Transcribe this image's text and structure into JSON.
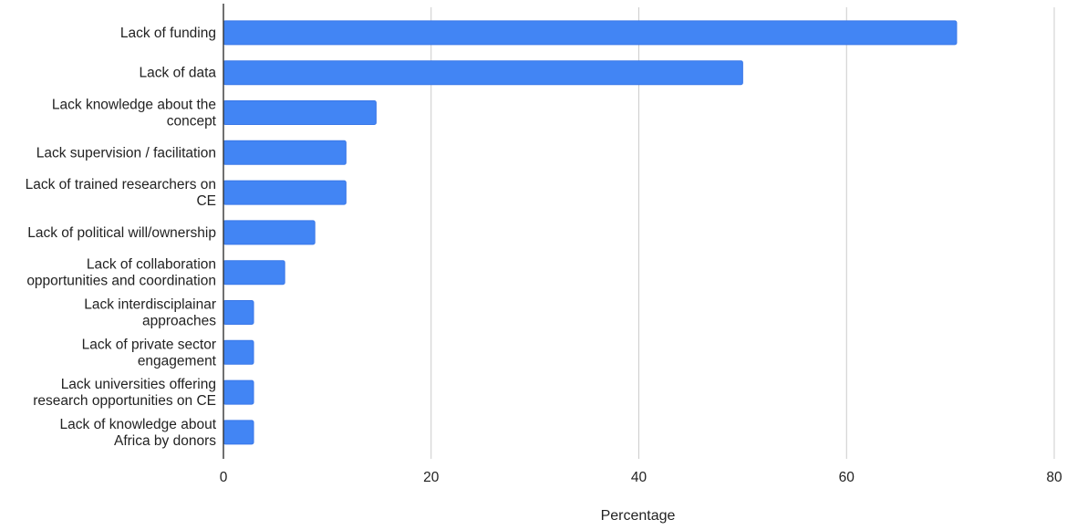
{
  "chart_data": {
    "type": "bar",
    "orientation": "horizontal",
    "categories": [
      [
        "Lack of funding"
      ],
      [
        "Lack of data"
      ],
      [
        "Lack knowledge about the",
        "concept"
      ],
      [
        "Lack supervision / facilitation"
      ],
      [
        "Lack of trained researchers on",
        "CE"
      ],
      [
        "Lack of political will/ownership"
      ],
      [
        "Lack of collaboration",
        "opportunities and coordination"
      ],
      [
        "Lack interdisciplainar",
        "approaches"
      ],
      [
        "Lack of private sector",
        "engagement"
      ],
      [
        "Lack universities offering",
        "research opportunities on CE"
      ],
      [
        "Lack of knowledge about",
        "Africa by donors"
      ]
    ],
    "values": [
      70.6,
      50.0,
      14.7,
      11.8,
      11.8,
      8.8,
      5.9,
      2.9,
      2.9,
      2.9,
      2.9
    ],
    "xlim": [
      0,
      80
    ],
    "xticks": [
      0,
      20,
      40,
      60,
      80
    ],
    "xlabel": "Percentage",
    "ylabel": "",
    "title": "",
    "grid": "vertical",
    "legend": "none",
    "bar_color": "#4285f4",
    "bar_stroke": "#3b78e7",
    "grid_color": "#cccccc",
    "axis_color": "#333333"
  }
}
